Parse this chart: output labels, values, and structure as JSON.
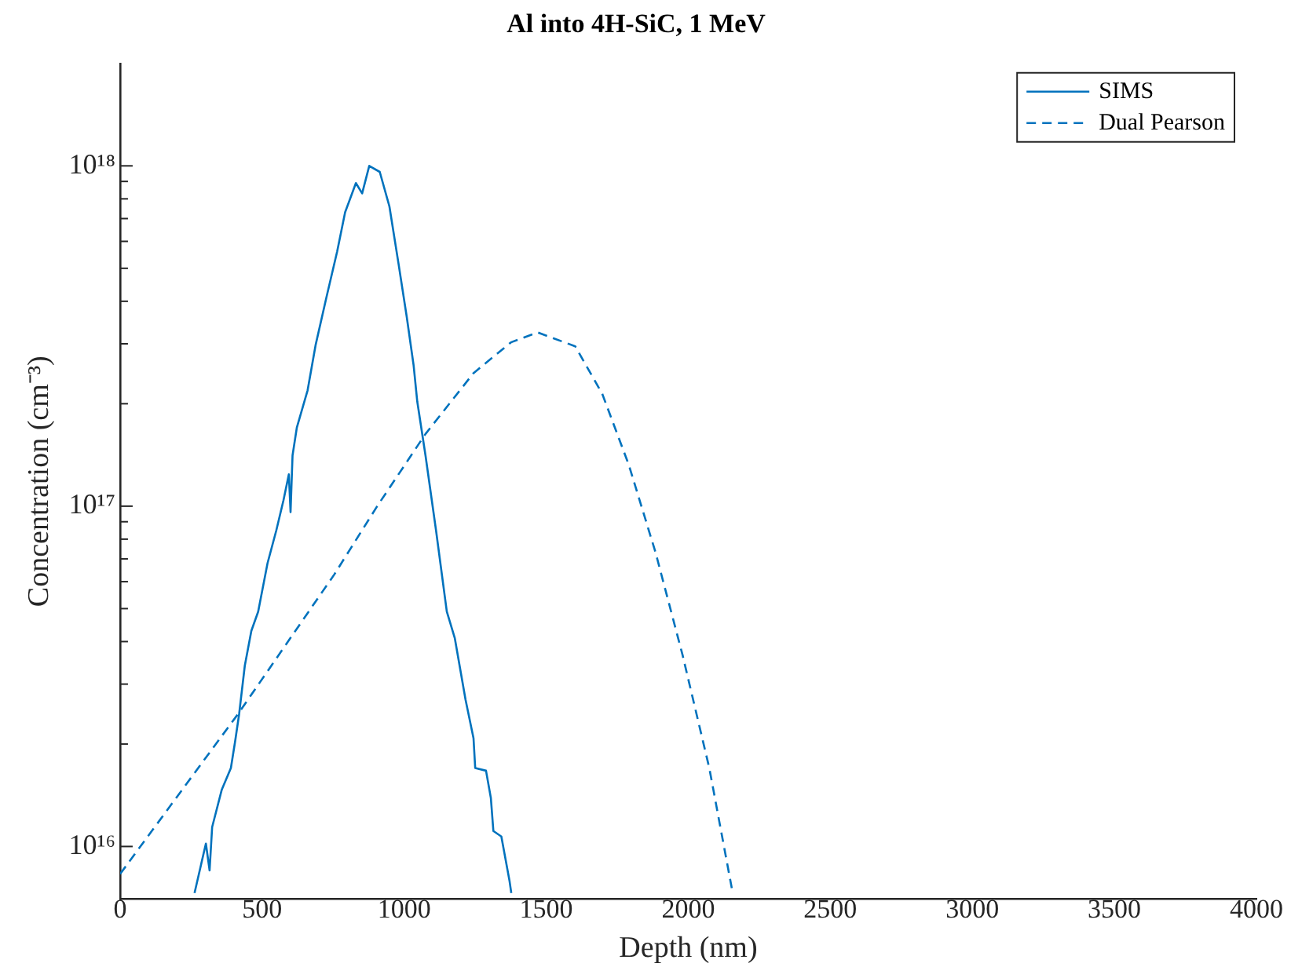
{
  "chart_data": {
    "type": "line",
    "title": "Al into 4H-SiC, 1 MeV",
    "xlabel": "Depth (nm)",
    "ylabel": "Concentration (cm⁻³)",
    "xlim": [
      0,
      4000
    ],
    "xticks": [
      0,
      500,
      1000,
      1500,
      2000,
      2500,
      3000,
      3500,
      4000
    ],
    "ylim": [
      7000000000000000.0,
      2e+18
    ],
    "yticks": [
      {
        "value": 1e+16,
        "label": "10¹⁶"
      },
      {
        "value": 2e+16,
        "label": null
      },
      {
        "value": 3e+16,
        "label": null
      },
      {
        "value": 4e+16,
        "label": null
      },
      {
        "value": 5e+16,
        "label": null
      },
      {
        "value": 6e+16,
        "label": null
      },
      {
        "value": 7e+16,
        "label": null
      },
      {
        "value": 8e+16,
        "label": null
      },
      {
        "value": 9e+16,
        "label": null
      },
      {
        "value": 1e+17,
        "label": "10¹⁷"
      },
      {
        "value": 2e+17,
        "label": null
      },
      {
        "value": 3e+17,
        "label": null
      },
      {
        "value": 4e+17,
        "label": null
      },
      {
        "value": 5e+17,
        "label": null
      },
      {
        "value": 6e+17,
        "label": null
      },
      {
        "value": 7e+17,
        "label": null
      },
      {
        "value": 8e+17,
        "label": null
      },
      {
        "value": 9e+17,
        "label": null
      },
      {
        "value": 1e+18,
        "label": "10¹⁸"
      }
    ],
    "log": "y",
    "grid": false,
    "legend": "top right",
    "marker": "none",
    "series": [
      {
        "name": "SIMS",
        "color": "#0072bd",
        "line_style": "solid",
        "x": [
          262,
          302,
          315,
          324,
          358,
          390,
          405,
          419,
          439,
          462,
          486,
          519,
          550,
          575,
          594,
          600,
          607,
          622,
          660,
          688,
          726,
          764,
          792,
          830,
          852,
          877,
          914,
          948,
          981,
          1009,
          1033,
          1046,
          1075,
          1112,
          1150,
          1178,
          1216,
          1244,
          1250,
          1288,
          1305,
          1314,
          1342,
          1371,
          1377
        ],
        "values": [
          7300000000000000.0,
          1.02e+16,
          8500000000000000.0,
          1.14e+16,
          1.47e+16,
          1.7e+16,
          2.04e+16,
          2.45e+16,
          3.4e+16,
          4.3e+16,
          4.9e+16,
          6.8e+16,
          8.5e+16,
          1.04e+17,
          1.24e+17,
          9.6e+16,
          1.41e+17,
          1.7e+17,
          2.19e+17,
          2.97e+17,
          4.1e+17,
          5.6e+17,
          7.3e+17,
          8.9e+17,
          8.3e+17,
          1e+18,
          9.6e+17,
          7.6e+17,
          5.1e+17,
          3.6e+17,
          2.6e+17,
          2.03e+17,
          1.41e+17,
          8.5e+16,
          4.9e+16,
          4.1e+16,
          2.7e+16,
          2.08e+16,
          1.7e+16,
          1.67e+16,
          1.39e+16,
          1.11e+16,
          1.07e+16,
          7900000000000000.0,
          7300000000000000.0
        ]
      },
      {
        "name": "Dual Pearson",
        "color": "#0072bd",
        "line_style": "dashed",
        "x": [
          0,
          415,
          754,
          905,
          1075,
          1244,
          1376,
          1470,
          1602,
          1697,
          1791,
          1885,
          1980,
          2074,
          2155
        ],
        "values": [
          8300000000000000.0,
          2.45e+16,
          6.3e+16,
          1e+17,
          1.63e+17,
          2.46e+17,
          3.03e+17,
          3.24e+17,
          2.95e+17,
          2.14e+17,
          1.32e+17,
          7.3e+16,
          3.65e+16,
          1.7e+16,
          7400000000000000.0
        ]
      }
    ]
  }
}
